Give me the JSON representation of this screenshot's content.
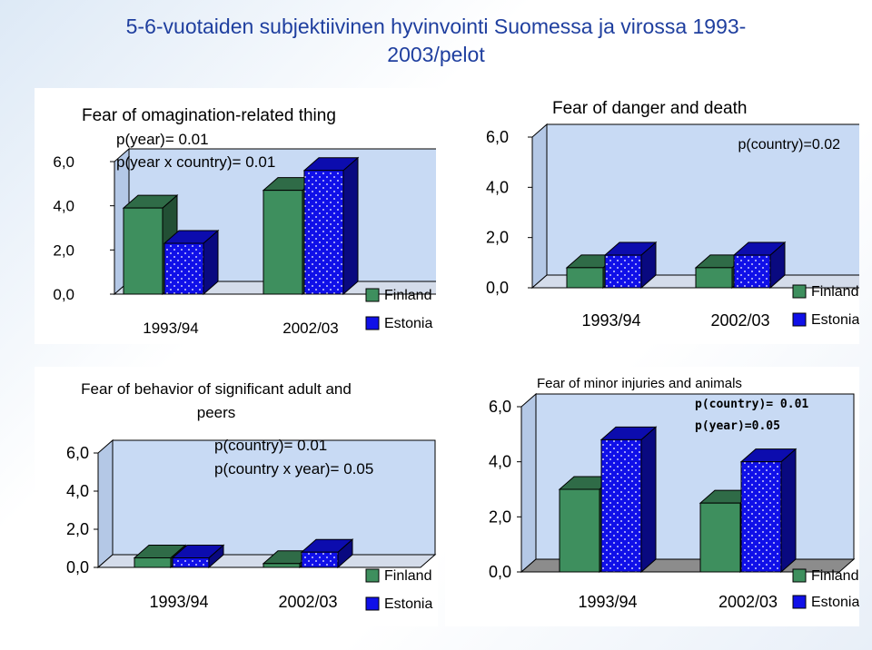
{
  "page": {
    "title_line1": "5-6-vuotaiden subjektiivinen hyvinvointi Suomessa ja virossa 1993-",
    "title_line2": "2003/pelot"
  },
  "colors": {
    "finland": "#3e8f5e",
    "estonia": "#1010e8",
    "plot_bg": "#c8daf4"
  },
  "chart_data": [
    {
      "type": "bar",
      "title": "Fear of omagination-related thing",
      "annotations": [
        "p(year)= 0.01",
        "p(year x country)= 0.01"
      ],
      "categories": [
        "1993/94",
        "2002/03"
      ],
      "series": [
        {
          "name": "Finland",
          "values": [
            3.9,
            4.7
          ]
        },
        {
          "name": "Estonia",
          "values": [
            2.3,
            5.6
          ]
        }
      ],
      "yticks": [
        "0,0",
        "2,0",
        "4,0",
        "6,0"
      ],
      "ylim": [
        0,
        6
      ]
    },
    {
      "type": "bar",
      "title": "Fear of danger and death",
      "annotations": [
        "p(country)=0.02"
      ],
      "categories": [
        "1993/94",
        "2002/03"
      ],
      "series": [
        {
          "name": "Finland",
          "values": [
            0.8,
            0.8
          ]
        },
        {
          "name": "Estonia",
          "values": [
            1.3,
            1.3
          ]
        }
      ],
      "yticks": [
        "0,0",
        "2,0",
        "4,0",
        "6,0"
      ],
      "ylim": [
        0,
        6
      ]
    },
    {
      "type": "bar",
      "title": "Fear of behavior of significant adult and peers",
      "annotations": [
        "p(country)= 0.01",
        "p(country x year)= 0.05"
      ],
      "categories": [
        "1993/94",
        "2002/03"
      ],
      "series": [
        {
          "name": "Finland",
          "values": [
            0.5,
            0.2
          ]
        },
        {
          "name": "Estonia",
          "values": [
            0.5,
            0.8
          ]
        }
      ],
      "yticks": [
        "0,0",
        "2,0",
        "4,0",
        "6,0"
      ],
      "ylim": [
        0,
        6
      ]
    },
    {
      "type": "bar",
      "title": "Fear of minor injuries and animals",
      "annotations": [
        "p(country)= 0.01",
        "p(year)=0.05"
      ],
      "categories": [
        "1993/94",
        "2002/03"
      ],
      "series": [
        {
          "name": "Finland",
          "values": [
            3.0,
            2.5
          ]
        },
        {
          "name": "Estonia",
          "values": [
            4.8,
            4.0
          ]
        }
      ],
      "yticks": [
        "0,0",
        "2,0",
        "4,0",
        "6,0"
      ],
      "ylim": [
        0,
        6
      ]
    }
  ]
}
